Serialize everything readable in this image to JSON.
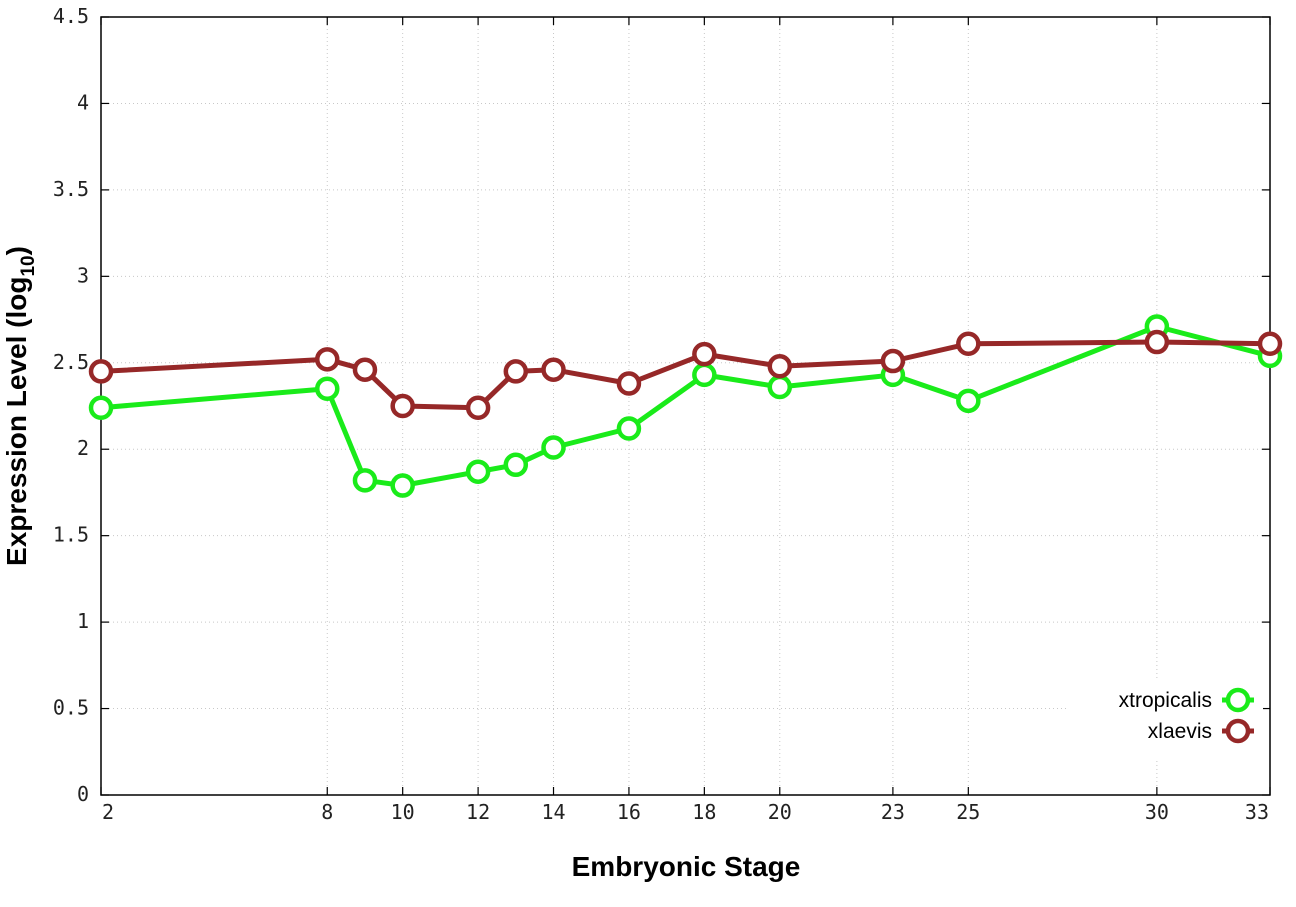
{
  "chart_data": {
    "type": "line",
    "xlabel": "Embryonic Stage",
    "ylabel_main": "Expression Level (log",
    "ylabel_sub": "10",
    "ylabel_close": ")",
    "ylim": [
      0,
      4.5
    ],
    "yticks": [
      "0",
      "0.5",
      "1",
      "1.5",
      "2",
      "2.5",
      "3",
      "3.5",
      "4",
      "4.5"
    ],
    "x_stages": [
      2,
      8,
      9,
      10,
      12,
      13,
      14,
      16,
      18,
      20,
      23,
      25,
      30,
      33
    ],
    "xticks": [
      "2",
      "8",
      "10",
      "12",
      "14",
      "16",
      "18",
      "20",
      "23",
      "25",
      "30",
      "33"
    ],
    "grid": true,
    "legend_position": "bottom-right",
    "series": [
      {
        "name": "xtropicalis",
        "color": "#1aeb1a",
        "values": [
          2.24,
          2.35,
          1.82,
          1.79,
          1.87,
          1.91,
          2.01,
          2.12,
          2.43,
          2.36,
          2.43,
          2.28,
          2.71,
          2.54
        ]
      },
      {
        "name": "xlaevis",
        "color": "#962828",
        "values": [
          2.45,
          2.52,
          2.46,
          2.25,
          2.24,
          2.45,
          2.46,
          2.38,
          2.55,
          2.48,
          2.51,
          2.61,
          2.62,
          2.61
        ]
      }
    ]
  }
}
